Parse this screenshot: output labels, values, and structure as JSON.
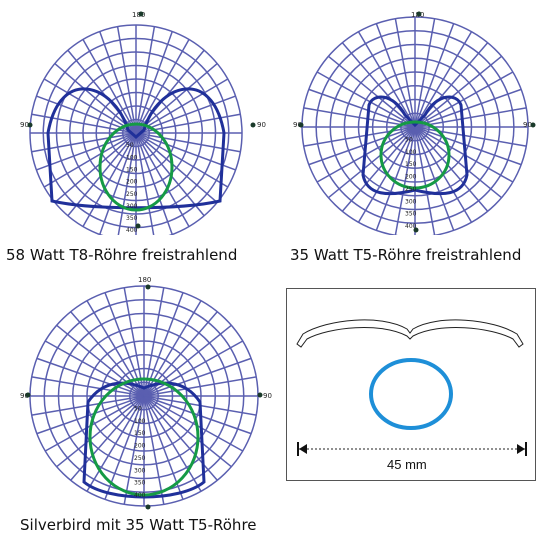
{
  "diagrams": [
    {
      "caption": "58 Watt T8-Röhre freistrahlend",
      "tick_top": "180",
      "tick_left": "90",
      "tick_right": "90",
      "radial_scale": [
        "50",
        "100",
        "150",
        "200",
        "250",
        "300",
        "350",
        "400"
      ]
    },
    {
      "caption": "35 Watt T5-Röhre freistrahlend",
      "tick_top": "180",
      "tick_left": "90",
      "tick_right": "90",
      "radial_scale": [
        "50",
        "100",
        "150",
        "200",
        "250",
        "300",
        "350",
        "400"
      ]
    },
    {
      "caption": "Silverbird mit 35 Watt T5-Röhre",
      "tick_top": "180",
      "tick_left": "90",
      "tick_right": "90",
      "radial_scale": [
        "50",
        "100",
        "150",
        "200",
        "250",
        "300",
        "350",
        "400"
      ]
    }
  ],
  "reflector_drawing": {
    "dimension_label": "45 mm"
  },
  "colors": {
    "grid": "#5a5fb0",
    "curve_blue": "#20309a",
    "curve_green": "#159a45",
    "tube": "#1e8fd8"
  }
}
